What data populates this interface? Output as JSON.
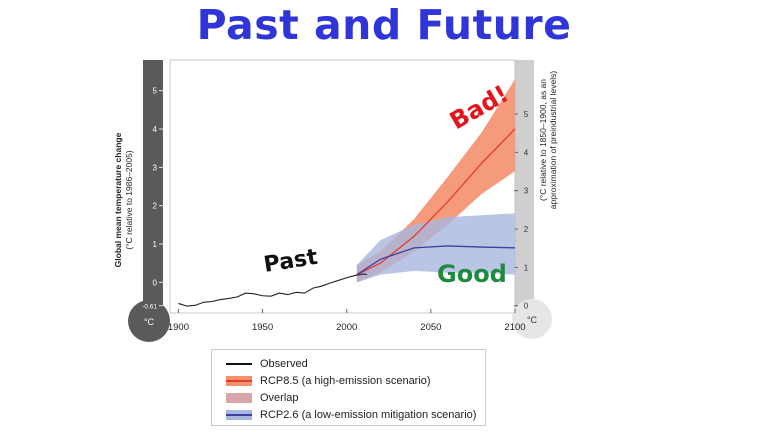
{
  "slide": {
    "title": "Past and Future"
  },
  "chart_data": {
    "type": "line",
    "title": "",
    "xlabel": "",
    "xlim": [
      1895,
      2100
    ],
    "x_ticks": [
      "1900",
      "1950",
      "2000",
      "2050",
      "2100"
    ],
    "left_axis": {
      "label_main": "Global mean temperature change",
      "label_sub": "(°C relative to 1986–2005)",
      "ylim": [
        -0.8,
        5.8
      ],
      "ticks": [
        "5",
        "4",
        "3",
        "2",
        "1",
        "0",
        "-0.61"
      ],
      "unit_badge": "°C"
    },
    "right_axis": {
      "label_main": "(°C relative to 1850–1900, as an",
      "label_sub": "approximation of preindustrial levels)",
      "ticks": [
        "5",
        "4",
        "3",
        "2",
        "1",
        "0"
      ],
      "unit_badge": "°C"
    },
    "annotations": {
      "bad": "Bad!",
      "good": "Good",
      "past": "Past"
    },
    "series": [
      {
        "name": "Observed",
        "color": "#222222",
        "x": [
          1900,
          1905,
          1910,
          1915,
          1920,
          1925,
          1930,
          1935,
          1940,
          1945,
          1950,
          1955,
          1960,
          1965,
          1970,
          1975,
          1980,
          1985,
          1990,
          1995,
          2000,
          2005,
          2010,
          2012
        ],
        "values": [
          -0.55,
          -0.62,
          -0.6,
          -0.52,
          -0.5,
          -0.45,
          -0.42,
          -0.38,
          -0.28,
          -0.3,
          -0.35,
          -0.36,
          -0.28,
          -0.32,
          -0.26,
          -0.28,
          -0.15,
          -0.1,
          -0.02,
          0.05,
          0.12,
          0.18,
          0.22,
          0.2
        ]
      },
      {
        "name": "RCP8.5 (a high-emission scenario)",
        "color": "#e0402a",
        "fill": "#f58f6e",
        "x": [
          2006,
          2020,
          2040,
          2060,
          2080,
          2100
        ],
        "values": [
          0.2,
          0.5,
          1.2,
          2.1,
          3.1,
          4.0
        ],
        "lower": [
          0.0,
          0.25,
          0.8,
          1.5,
          2.3,
          2.9
        ],
        "upper": [
          0.45,
          0.8,
          1.65,
          2.75,
          3.9,
          5.3
        ]
      },
      {
        "name": "RCP2.6 (a low-emission mitigation scenario)",
        "color": "#3f3fa0",
        "fill": "#a9b7de",
        "x": [
          2006,
          2020,
          2040,
          2060,
          2080,
          2100
        ],
        "values": [
          0.2,
          0.6,
          0.9,
          0.95,
          0.92,
          0.9
        ],
        "lower": [
          0.0,
          0.2,
          0.3,
          0.25,
          0.25,
          0.2
        ],
        "upper": [
          0.45,
          1.1,
          1.5,
          1.7,
          1.75,
          1.8
        ]
      }
    ],
    "legend": [
      {
        "label": "Observed",
        "kind": "line",
        "line": "#111111"
      },
      {
        "label": "RCP8.5 (a high-emission scenario)",
        "kind": "band",
        "fill": "#f58f6e",
        "line": "#e0402a"
      },
      {
        "label": "Overlap",
        "kind": "fill",
        "fill": "#d8a5a8"
      },
      {
        "label": "RCP2.6 (a low-emission mitigation scenario)",
        "kind": "band",
        "fill": "#a9b7de",
        "line": "#3f3fa0"
      }
    ]
  }
}
